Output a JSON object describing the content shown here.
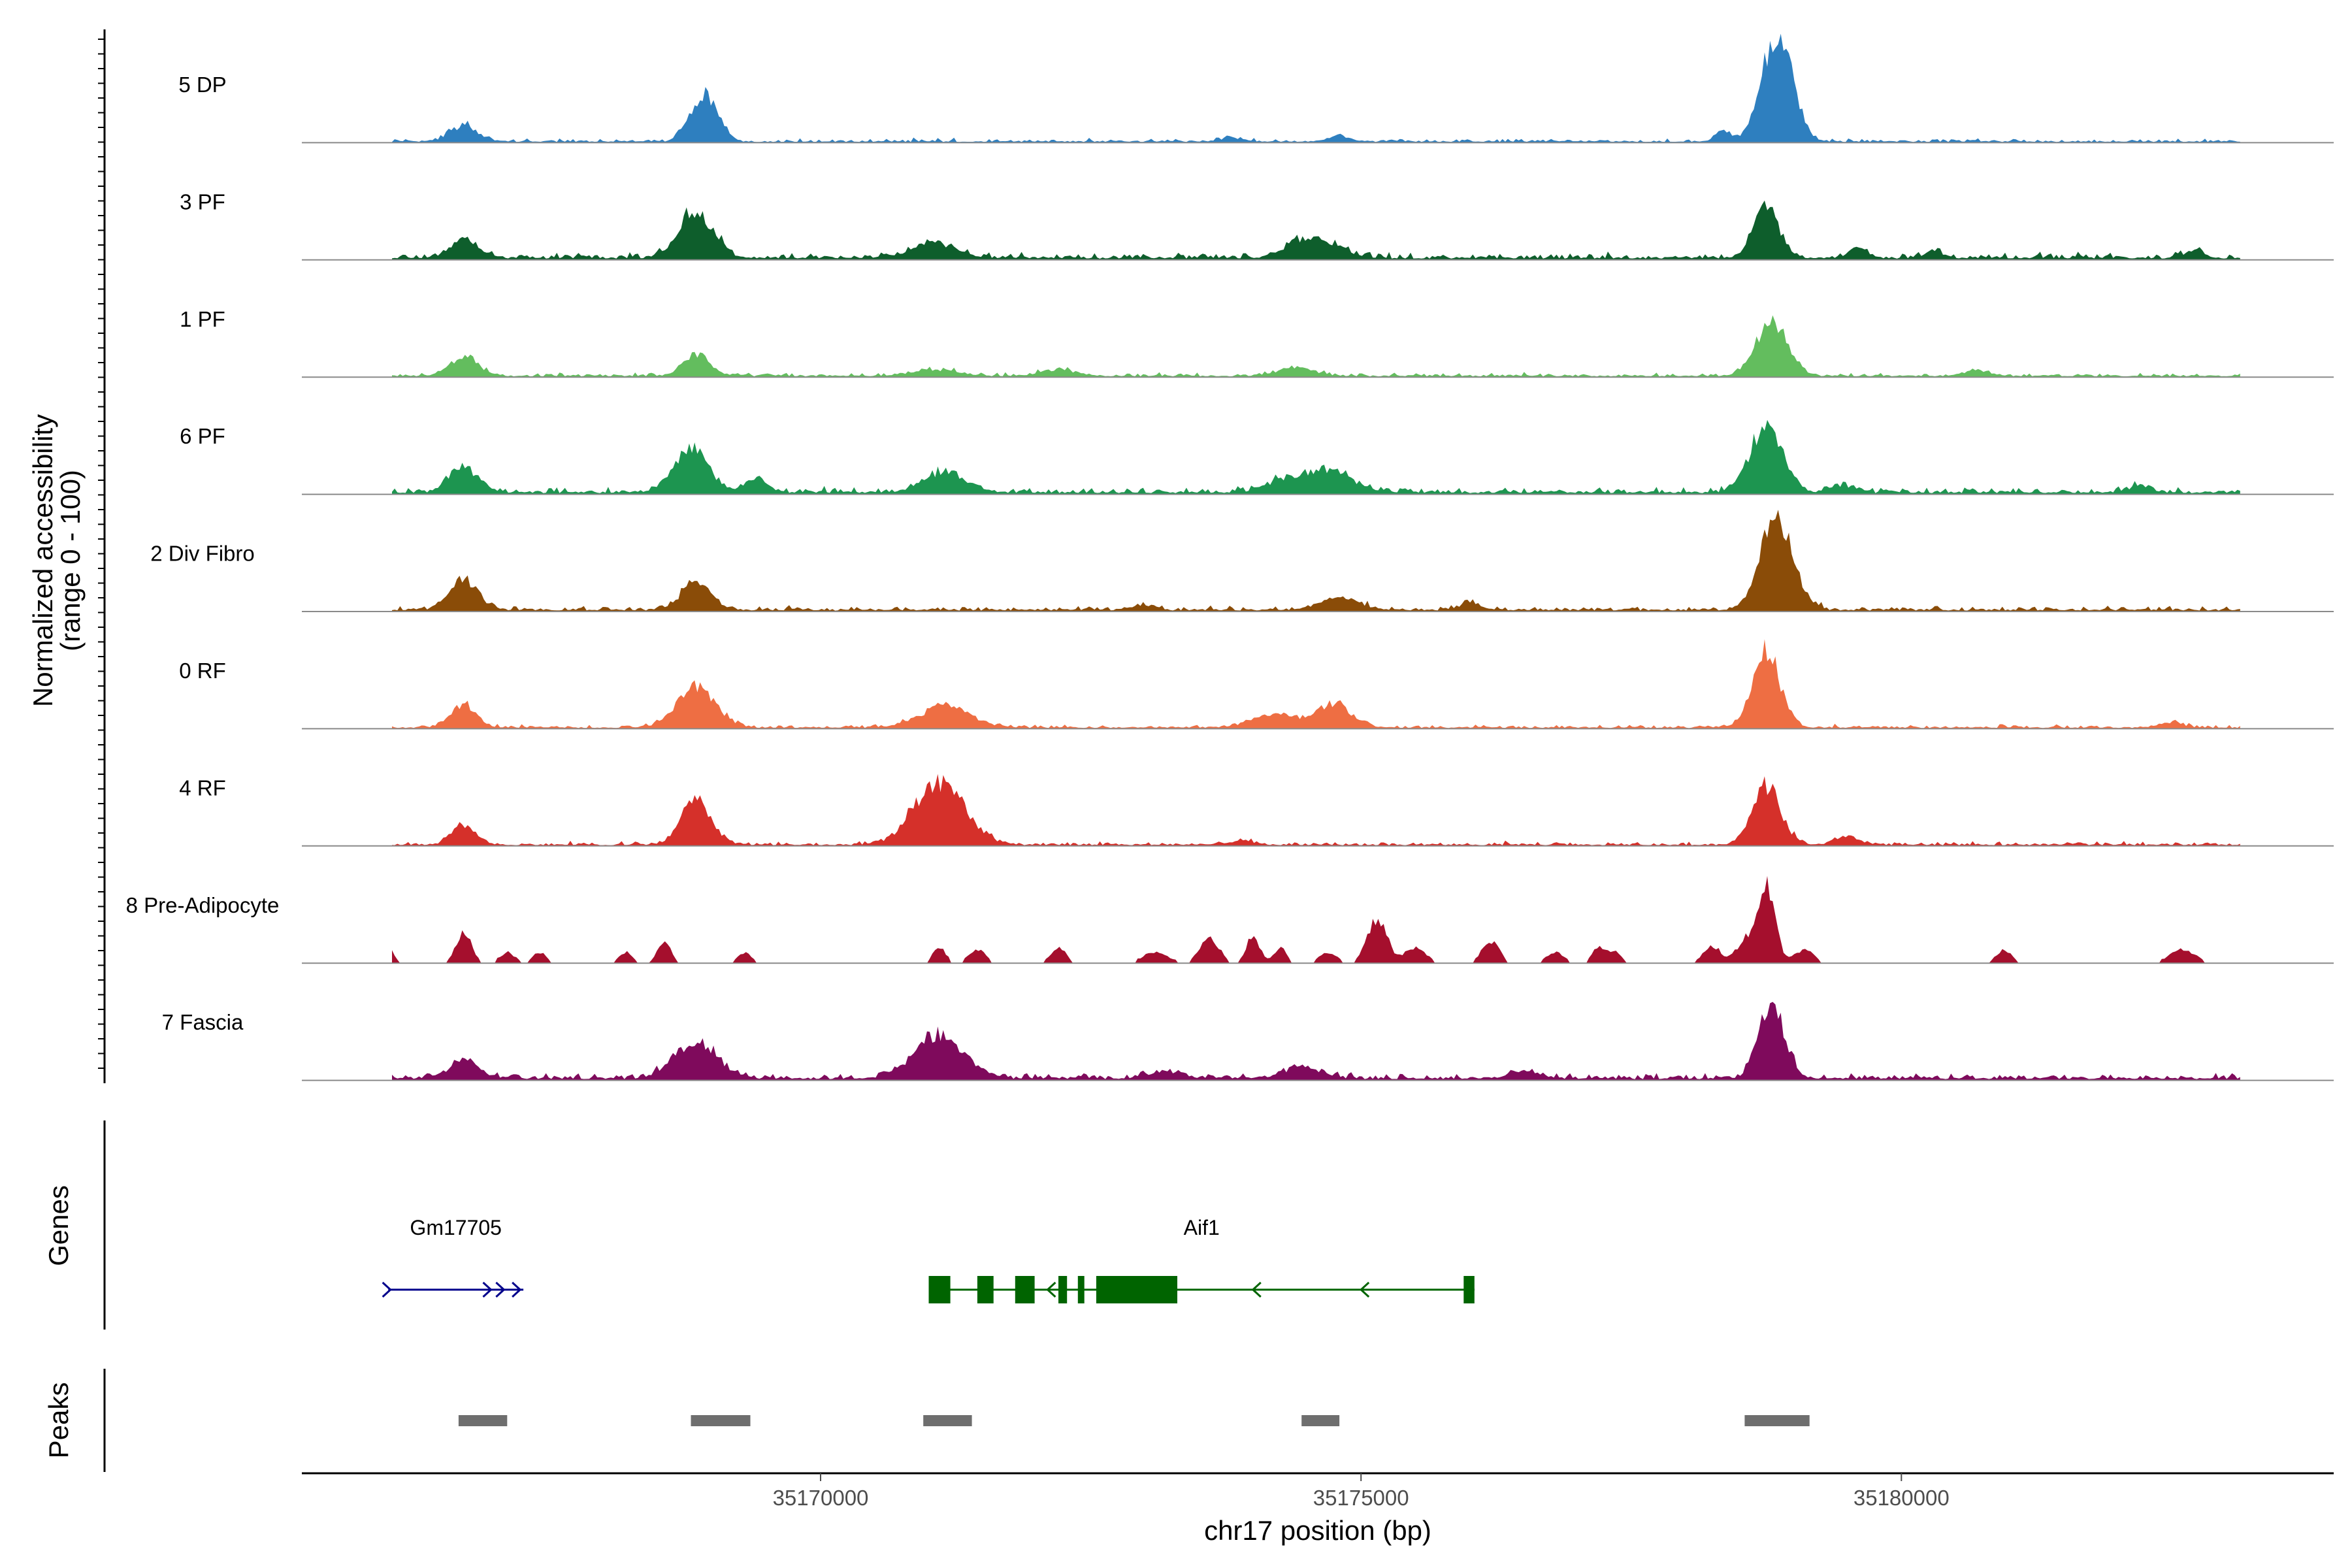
{
  "colors": {
    "peak": "#6e6e6e",
    "baseline": "#8a8a8a",
    "axis": "#000000"
  },
  "chart_data": {
    "type": "area",
    "title": "",
    "ylabel_line1": "Normalized accessibility",
    "ylabel_line2": "(range 0 - 100)",
    "xlabel": "chr17 position (bp)",
    "xlim": [
      35165200,
      35184000
    ],
    "ylim": [
      0,
      100
    ],
    "xticks": [
      35170000,
      35175000,
      35180000
    ],
    "xtick_labels": [
      "35170000",
      "35175000",
      "35180000"
    ],
    "series": [
      {
        "name": "5 DP",
        "color": "#2e7fbf",
        "noise": 3,
        "sparse": false,
        "peaks": [
          [
            35166700,
            130,
            14
          ],
          [
            35168750,
            70,
            10
          ],
          [
            35168950,
            110,
            40
          ],
          [
            35178350,
            70,
            10
          ],
          [
            35178850,
            140,
            100
          ],
          [
            35174800,
            100,
            5
          ],
          [
            35173800,
            80,
            4
          ]
        ]
      },
      {
        "name": "3 PF",
        "color": "#0e5e2c",
        "noise": 5,
        "sparse": false,
        "peaks": [
          [
            35166700,
            130,
            16
          ],
          [
            35168850,
            160,
            42
          ],
          [
            35171050,
            200,
            14
          ],
          [
            35174450,
            160,
            16
          ],
          [
            35174750,
            140,
            10
          ],
          [
            35178750,
            120,
            45
          ],
          [
            35179600,
            90,
            8
          ],
          [
            35180300,
            90,
            6
          ],
          [
            35182700,
            90,
            6
          ]
        ]
      },
      {
        "name": "1 PF",
        "color": "#63bd5e",
        "noise": 3,
        "sparse": false,
        "peaks": [
          [
            35166700,
            130,
            18
          ],
          [
            35168850,
            120,
            20
          ],
          [
            35171050,
            200,
            6
          ],
          [
            35172200,
            160,
            6
          ],
          [
            35174400,
            160,
            8
          ],
          [
            35178800,
            150,
            48
          ],
          [
            35180700,
            120,
            5
          ]
        ]
      },
      {
        "name": "6 PF",
        "color": "#1d9550",
        "noise": 5,
        "sparse": false,
        "peaks": [
          [
            35166700,
            130,
            22
          ],
          [
            35168800,
            160,
            38
          ],
          [
            35169400,
            100,
            12
          ],
          [
            35171150,
            200,
            18
          ],
          [
            35174700,
            220,
            20
          ],
          [
            35174300,
            180,
            10
          ],
          [
            35178750,
            150,
            60
          ],
          [
            35179450,
            100,
            6
          ],
          [
            35182200,
            100,
            5
          ]
        ]
      },
      {
        "name": "2 Div Fibro",
        "color": "#8a4c08",
        "noise": 4,
        "sparse": false,
        "peaks": [
          [
            35166700,
            130,
            28
          ],
          [
            35168850,
            130,
            26
          ],
          [
            35174800,
            180,
            12
          ],
          [
            35178850,
            150,
            85
          ],
          [
            35173000,
            100,
            5
          ],
          [
            35176000,
            100,
            6
          ]
        ]
      },
      {
        "name": "0 RF",
        "color": "#ee6e43",
        "noise": 3,
        "sparse": false,
        "peaks": [
          [
            35166700,
            110,
            22
          ],
          [
            35168850,
            180,
            36
          ],
          [
            35171150,
            230,
            20
          ],
          [
            35174200,
            200,
            12
          ],
          [
            35174750,
            160,
            22
          ],
          [
            35178750,
            130,
            68
          ],
          [
            35182500,
            100,
            5
          ]
        ]
      },
      {
        "name": "4 RF",
        "color": "#d5302a",
        "noise": 3,
        "sparse": false,
        "peaks": [
          [
            35166700,
            110,
            18
          ],
          [
            35168850,
            140,
            40
          ],
          [
            35171100,
            230,
            58
          ],
          [
            35173900,
            100,
            4
          ],
          [
            35178750,
            130,
            55
          ],
          [
            35179500,
            100,
            8
          ]
        ]
      },
      {
        "name": "8 Pre-Adipocyte",
        "color": "#a50f2d",
        "noise": 0,
        "sparse": true,
        "peaks": [
          [
            35166000,
            50,
            14
          ],
          [
            35166700,
            70,
            28
          ],
          [
            35167100,
            70,
            10
          ],
          [
            35167400,
            60,
            10
          ],
          [
            35168200,
            60,
            10
          ],
          [
            35168550,
            60,
            20
          ],
          [
            35169300,
            60,
            10
          ],
          [
            35171100,
            60,
            14
          ],
          [
            35171450,
            80,
            12
          ],
          [
            35172200,
            70,
            14
          ],
          [
            35173100,
            120,
            10
          ],
          [
            35173600,
            90,
            22
          ],
          [
            35174000,
            60,
            26
          ],
          [
            35174250,
            60,
            14
          ],
          [
            35174700,
            80,
            10
          ],
          [
            35175150,
            90,
            40
          ],
          [
            35175500,
            100,
            14
          ],
          [
            35176200,
            80,
            20
          ],
          [
            35176800,
            80,
            10
          ],
          [
            35177200,
            60,
            14
          ],
          [
            35177350,
            60,
            10
          ],
          [
            35178250,
            80,
            16
          ],
          [
            35178550,
            80,
            20
          ],
          [
            35178750,
            80,
            72
          ],
          [
            35179100,
            90,
            12
          ],
          [
            35180950,
            70,
            12
          ],
          [
            35182600,
            120,
            12
          ]
        ]
      },
      {
        "name": "7 Fascia",
        "color": "#7f0a5c",
        "noise": 5,
        "sparse": false,
        "peaks": [
          [
            35166700,
            140,
            16
          ],
          [
            35168850,
            200,
            32
          ],
          [
            35171100,
            230,
            38
          ],
          [
            35174450,
            180,
            10
          ],
          [
            35178800,
            120,
            66
          ],
          [
            35173200,
            140,
            6
          ],
          [
            35176500,
            140,
            6
          ]
        ]
      }
    ],
    "genes": {
      "title": "Genes",
      "items": [
        {
          "name": "Gm17705",
          "strand": "+",
          "start": 35166000,
          "end": 35167250,
          "color": "#00008b",
          "exons": [],
          "arrows": [
            35166020,
            35166950,
            35167070,
            35167220
          ]
        },
        {
          "name": "Aif1",
          "strand": "-",
          "start": 35171000,
          "end": 35176050,
          "color": "#006400",
          "exons": [
            [
              35171000,
              35171200
            ],
            [
              35171450,
              35171600
            ],
            [
              35171800,
              35171980
            ],
            [
              35172200,
              35172280
            ],
            [
              35172380,
              35172440
            ],
            [
              35172550,
              35173300
            ],
            [
              35175950,
              35176050
            ]
          ],
          "arrows": [
            35172100,
            35174000,
            35175000
          ]
        }
      ]
    },
    "peaks": {
      "title": "Peaks",
      "regions": [
        [
          35166650,
          35167100
        ],
        [
          35168800,
          35169350
        ],
        [
          35170950,
          35171400
        ],
        [
          35174450,
          35174800
        ],
        [
          35178550,
          35179150
        ]
      ]
    }
  }
}
